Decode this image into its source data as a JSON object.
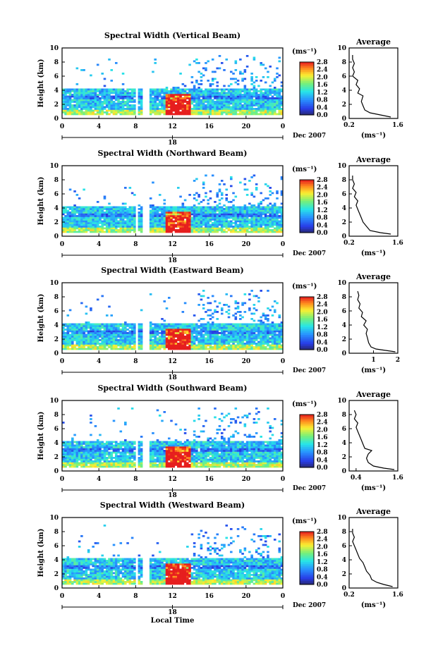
{
  "chart_data": [
    {
      "type": "heatmap",
      "title": "Spectral Width (Vertical Beam)",
      "ylabel": "Height (km)",
      "ylim": [
        0,
        10
      ],
      "xlim": [
        0,
        24
      ],
      "xticks": [
        "0",
        "4",
        "8",
        "12",
        "16",
        "20",
        "0"
      ],
      "date_tick": "18",
      "date_label": "Dec 2007",
      "colorbar": {
        "unit": "(ms⁻¹)",
        "ticks": [
          "2.8",
          "2.4",
          "2.0",
          "1.6",
          "1.2",
          "0.8",
          "0.4",
          "0.0"
        ],
        "range": [
          0,
          2.8
        ]
      },
      "average": {
        "title": "Average",
        "xlabel": "(ms⁻¹)",
        "xlim": [
          0.2,
          1.6
        ],
        "xticks": [
          "0.2",
          "1.6"
        ],
        "yticks": [
          "0",
          "2",
          "4",
          "6",
          "8",
          "10"
        ],
        "profile": [
          [
            1.4,
            0.2
          ],
          [
            1.2,
            0.4
          ],
          [
            1.0,
            0.6
          ],
          [
            0.8,
            0.8
          ],
          [
            0.65,
            1.2
          ],
          [
            0.6,
            1.8
          ],
          [
            0.55,
            2.4
          ],
          [
            0.6,
            3.2
          ],
          [
            0.45,
            3.6
          ],
          [
            0.5,
            4.2
          ],
          [
            0.4,
            4.8
          ],
          [
            0.45,
            5.4
          ],
          [
            0.3,
            6.0
          ],
          [
            0.35,
            6.6
          ],
          [
            0.3,
            7.2
          ],
          [
            0.35,
            7.8
          ],
          [
            0.3,
            8.4
          ],
          [
            0.3,
            9.0
          ]
        ]
      }
    },
    {
      "type": "heatmap",
      "title": "Spectral Width (Northward Beam)",
      "ylabel": "Height (km)",
      "ylim": [
        0,
        10
      ],
      "xlim": [
        0,
        24
      ],
      "xticks": [
        "0",
        "4",
        "8",
        "12",
        "16",
        "20",
        "0"
      ],
      "date_tick": "18",
      "date_label": "Dec 2007",
      "colorbar": {
        "unit": "(ms⁻¹)",
        "ticks": [
          "2.8",
          "2.4",
          "2.0",
          "1.6",
          "1.2",
          "0.8",
          "0.4",
          "0.0"
        ],
        "range": [
          0,
          2.8
        ]
      },
      "average": {
        "title": "Average",
        "xlabel": "(ms⁻¹)",
        "xlim": [
          0.2,
          1.6
        ],
        "xticks": [
          "0.2",
          "1.6"
        ],
        "yticks": [
          "0",
          "2",
          "4",
          "6",
          "8",
          "10"
        ],
        "profile": [
          [
            1.4,
            0.3
          ],
          [
            1.1,
            0.5
          ],
          [
            0.8,
            0.8
          ],
          [
            0.7,
            1.4
          ],
          [
            0.6,
            2.0
          ],
          [
            0.55,
            2.6
          ],
          [
            0.5,
            3.2
          ],
          [
            0.45,
            3.8
          ],
          [
            0.4,
            4.4
          ],
          [
            0.45,
            5.0
          ],
          [
            0.35,
            5.6
          ],
          [
            0.4,
            6.2
          ],
          [
            0.3,
            6.8
          ],
          [
            0.35,
            7.4
          ],
          [
            0.3,
            8.0
          ],
          [
            0.3,
            8.6
          ]
        ]
      }
    },
    {
      "type": "heatmap",
      "title": "Spectral Width (Eastward Beam)",
      "ylabel": "Height (km)",
      "ylim": [
        0,
        10
      ],
      "xlim": [
        0,
        24
      ],
      "xticks": [
        "0",
        "4",
        "8",
        "12",
        "16",
        "20",
        "0"
      ],
      "date_tick": "18",
      "date_label": "Dec 2007",
      "colorbar": {
        "unit": "(ms⁻¹)",
        "ticks": [
          "2.8",
          "2.4",
          "2.0",
          "1.6",
          "1.2",
          "0.8",
          "0.4",
          "0.0"
        ],
        "range": [
          0,
          2.8
        ]
      },
      "average": {
        "title": "Average",
        "xlabel": "(ms⁻¹)",
        "xlim": [
          0,
          2
        ],
        "xticks": [
          "1",
          "2"
        ],
        "yticks": [
          "0",
          "2",
          "4",
          "6",
          "8",
          "10"
        ],
        "profile": [
          [
            1.9,
            0.2
          ],
          [
            1.5,
            0.4
          ],
          [
            1.1,
            0.6
          ],
          [
            0.9,
            0.9
          ],
          [
            0.8,
            1.5
          ],
          [
            0.75,
            2.2
          ],
          [
            0.7,
            2.8
          ],
          [
            0.75,
            3.4
          ],
          [
            0.6,
            4.0
          ],
          [
            0.7,
            4.6
          ],
          [
            0.5,
            5.2
          ],
          [
            0.55,
            5.8
          ],
          [
            0.4,
            6.4
          ],
          [
            0.45,
            7.0
          ],
          [
            0.35,
            7.6
          ],
          [
            0.4,
            8.2
          ],
          [
            0.35,
            8.8
          ]
        ]
      }
    },
    {
      "type": "heatmap",
      "title": "Spectral Width (Southward Beam)",
      "ylabel": "Height (km)",
      "ylim": [
        0,
        10
      ],
      "xlim": [
        0,
        24
      ],
      "xticks": [
        "0",
        "4",
        "8",
        "12",
        "16",
        "20",
        "0"
      ],
      "date_tick": "18",
      "date_label": "Dec 2007",
      "colorbar": {
        "unit": "(ms⁻¹)",
        "ticks": [
          "2.8",
          "2.4",
          "2.0",
          "1.6",
          "1.2",
          "0.8",
          "0.4",
          "0.0"
        ],
        "range": [
          0,
          2.8
        ]
      },
      "average": {
        "title": "Average",
        "xlabel": "(ms⁻¹)",
        "xlim": [
          0.2,
          1.6
        ],
        "xticks": [
          "0.4",
          "1.6"
        ],
        "yticks": [
          "0",
          "2",
          "4",
          "6",
          "8",
          "10"
        ],
        "profile": [
          [
            1.5,
            0.2
          ],
          [
            1.2,
            0.4
          ],
          [
            0.9,
            0.7
          ],
          [
            0.75,
            1.2
          ],
          [
            0.7,
            1.8
          ],
          [
            0.75,
            2.4
          ],
          [
            0.85,
            2.9
          ],
          [
            0.65,
            3.2
          ],
          [
            0.6,
            3.8
          ],
          [
            0.55,
            4.4
          ],
          [
            0.5,
            5.0
          ],
          [
            0.45,
            5.6
          ],
          [
            0.4,
            6.2
          ],
          [
            0.45,
            6.8
          ],
          [
            0.35,
            7.4
          ],
          [
            0.4,
            8.0
          ],
          [
            0.35,
            8.6
          ]
        ]
      }
    },
    {
      "type": "heatmap",
      "title": "Spectral Width (Westward Beam)",
      "ylabel": "Height (km)",
      "ylim": [
        0,
        10
      ],
      "xlim": [
        0,
        24
      ],
      "xticks": [
        "0",
        "4",
        "8",
        "12",
        "16",
        "20",
        "0"
      ],
      "date_tick": "18",
      "date_label": "Dec 2007",
      "xlabel": "Local Time",
      "colorbar": {
        "unit": "(ms⁻¹)",
        "ticks": [
          "2.8",
          "2.4",
          "2.0",
          "1.6",
          "1.2",
          "0.8",
          "0.4",
          "0.0"
        ],
        "range": [
          0,
          2.8
        ]
      },
      "average": {
        "title": "Average",
        "xlabel": "(ms⁻¹)",
        "xlim": [
          0.2,
          1.6
        ],
        "xticks": [
          "0.2",
          "1.6"
        ],
        "yticks": [
          "0",
          "2",
          "4",
          "6",
          "8",
          "10"
        ],
        "profile": [
          [
            1.45,
            0.2
          ],
          [
            1.2,
            0.5
          ],
          [
            1.0,
            0.8
          ],
          [
            0.85,
            1.2
          ],
          [
            0.8,
            1.8
          ],
          [
            0.7,
            2.4
          ],
          [
            0.65,
            3.0
          ],
          [
            0.6,
            3.6
          ],
          [
            0.5,
            4.2
          ],
          [
            0.45,
            4.8
          ],
          [
            0.4,
            5.4
          ],
          [
            0.35,
            6.0
          ],
          [
            0.3,
            6.6
          ],
          [
            0.35,
            7.2
          ],
          [
            0.3,
            7.8
          ],
          [
            0.3,
            8.4
          ]
        ]
      }
    }
  ]
}
